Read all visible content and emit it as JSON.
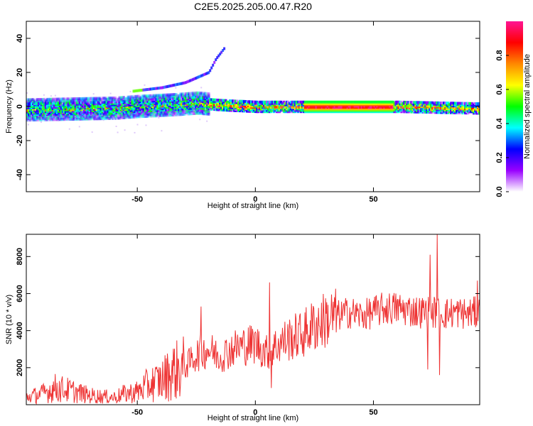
{
  "title": "C2E5.2025.205.00.47.R20",
  "chart_data": [
    {
      "type": "heatmap",
      "xlabel": "Height of straight line (km)",
      "ylabel": "Frequency (Hz)",
      "xlim": [
        -97,
        95
      ],
      "ylim": [
        -50,
        50
      ],
      "xticks": [
        -50,
        0,
        50
      ],
      "yticks": [
        -40,
        -20,
        0,
        20,
        40
      ],
      "colorbar": {
        "label": "Normalized spectral amplitude",
        "range": [
          0.0,
          1.0
        ],
        "ticks": [
          0.0,
          0.2,
          0.4,
          0.6,
          0.8
        ],
        "colors": [
          "#ffffff",
          "#9900ff",
          "#0000ff",
          "#00ffff",
          "#00ff00",
          "#ffff00",
          "#ff8800",
          "#ff0000",
          "#ff1493"
        ]
      },
      "ridge_center_hz": [
        {
          "x": -97,
          "y": -2
        },
        {
          "x": -60,
          "y": -1
        },
        {
          "x": -50,
          "y": 0
        },
        {
          "x": -35,
          "y": 1
        },
        {
          "x": -25,
          "y": 2
        },
        {
          "x": -15,
          "y": 1
        },
        {
          "x": 0,
          "y": 0
        },
        {
          "x": 20,
          "y": 0
        },
        {
          "x": 60,
          "y": 0
        },
        {
          "x": 95,
          "y": -1
        }
      ],
      "drifting_tone_hz": [
        {
          "x": -52,
          "y": 9
        },
        {
          "x": -40,
          "y": 11
        },
        {
          "x": -30,
          "y": 14
        },
        {
          "x": -20,
          "y": 20
        },
        {
          "x": -17,
          "y": 28
        },
        {
          "x": -13,
          "y": 35
        }
      ]
    },
    {
      "type": "line",
      "xlabel": "Height of straight line (km)",
      "ylabel": "SNR (10 * v/v)",
      "xlim": [
        -97,
        95
      ],
      "ylim": [
        0,
        9200
      ],
      "xticks": [
        -50,
        0,
        50
      ],
      "yticks": [
        2000,
        4000,
        6000,
        8000
      ],
      "color": "#ee3333",
      "series": [
        {
          "name": "",
          "x": [
            -97,
            -90,
            -85,
            -80,
            -70,
            -60,
            -55,
            -50,
            -45,
            -40,
            -35,
            -30,
            -25,
            -20,
            -15,
            -10,
            -5,
            0,
            5,
            10,
            15,
            20,
            25,
            30,
            35,
            40,
            45,
            50,
            55,
            60,
            65,
            70,
            75,
            80,
            85,
            90,
            95
          ],
          "y": [
            400,
            600,
            900,
            800,
            500,
            400,
            600,
            700,
            1100,
            1300,
            1800,
            2000,
            2700,
            3000,
            2600,
            3000,
            3200,
            3300,
            2800,
            3300,
            3600,
            3800,
            4300,
            4600,
            4800,
            5000,
            4800,
            5000,
            5200,
            5200,
            5100,
            5000,
            5000,
            4900,
            5000,
            4900,
            5000
          ]
        }
      ],
      "spikes": [
        {
          "x": -23,
          "y": 5300
        },
        {
          "x": 6,
          "y": 6600
        },
        {
          "x": 6.8,
          "y": 900
        },
        {
          "x": 74,
          "y": 8100
        },
        {
          "x": 77,
          "y": 9200
        },
        {
          "x": 73,
          "y": 1900
        },
        {
          "x": 78,
          "y": 1600
        },
        {
          "x": 94,
          "y": 6700
        }
      ]
    }
  ]
}
